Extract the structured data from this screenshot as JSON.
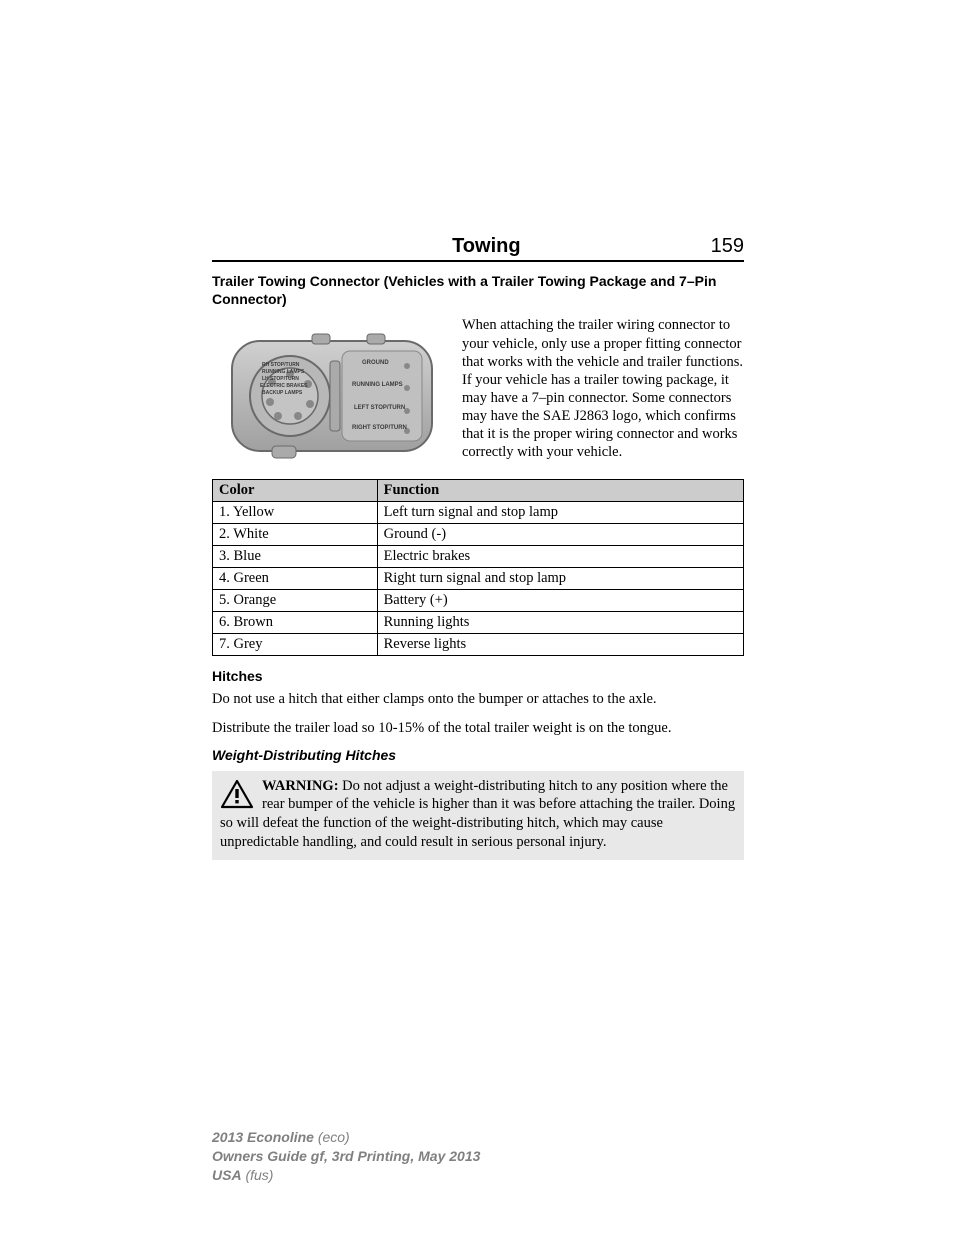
{
  "header": {
    "title": "Towing",
    "page_number": "159"
  },
  "subheading": "Trailer Towing Connector (Vehicles with a Trailer Towing Package and 7–Pin Connector)",
  "intro_paragraph": "When attaching the trailer wiring connector to your vehicle, only use a proper fitting connector that works with the vehicle and trailer functions. If your vehicle has a trailer towing package, it may have a 7–pin connector. Some connectors may have the SAE J2863 logo, which confirms that it is the proper wiring connector and works correctly with your vehicle.",
  "connector_image": {
    "fill_color": "#b8b8b8",
    "stroke_color": "#6a6a6a",
    "labels": {
      "left_top": "RH STOP/TURN",
      "left_2": "RUNNING LAMPS",
      "left_3": "LH STOP/TURN",
      "left_4": "ELECTRIC BRAKES",
      "left_5": "BACKUP LAMPS",
      "right_1": "GROUND",
      "right_2": "RUNNING LAMPS",
      "right_3": "LEFT STOP/TURN",
      "right_4": "RIGHT STOP/TURN"
    }
  },
  "table": {
    "headers": [
      "Color",
      "Function"
    ],
    "rows": [
      [
        "1. Yellow",
        "Left turn signal and stop lamp"
      ],
      [
        "2. White",
        "Ground (-)"
      ],
      [
        "3. Blue",
        "Electric brakes"
      ],
      [
        "4. Green",
        "Right turn signal and stop lamp"
      ],
      [
        "5. Orange",
        "Battery (+)"
      ],
      [
        "6. Brown",
        "Running lights"
      ],
      [
        "7. Grey",
        "Reverse lights"
      ]
    ]
  },
  "hitches": {
    "heading": "Hitches",
    "p1": "Do not use a hitch that either clamps onto the bumper or attaches to the axle.",
    "p2": "Distribute the trailer load so 10-15% of the total trailer weight is on the tongue."
  },
  "weight_dist": {
    "heading": "Weight-Distributing Hitches",
    "warning_label": "WARNING:",
    "warning_text": " Do not adjust a weight-distributing hitch to any position where the rear bumper of the vehicle is higher than it was before attaching the trailer. Doing so will defeat the function of the weight-distributing hitch, which may cause unpredictable handling, and could result in serious personal injury."
  },
  "footer": {
    "line1_bold": "2013 Econoline",
    "line1_rest": " (eco)",
    "line2": "Owners Guide gf, 3rd Printing, May 2013",
    "line3_bold": "USA",
    "line3_rest": " (fus)"
  }
}
